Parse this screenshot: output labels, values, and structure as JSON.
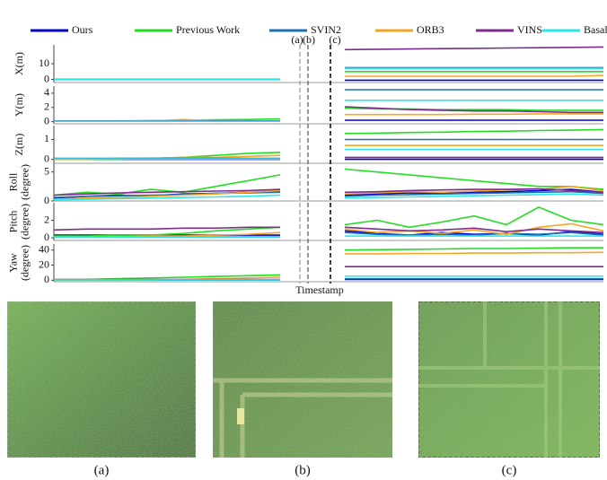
{
  "chart_data": {
    "type": "line",
    "xlabel": "Timestamp",
    "markers": [
      "(a)",
      "(b)",
      "(c)"
    ],
    "series": [
      {
        "name": "Ours",
        "color": "#0000cc"
      },
      {
        "name": "Previous Work",
        "color": "#22dd22"
      },
      {
        "name": "SVIN2",
        "color": "#1f6fb4"
      },
      {
        "name": "ORB3",
        "color": "#f5a623"
      },
      {
        "name": "VINS",
        "color": "#7b2d8e"
      },
      {
        "name": "Basalt",
        "color": "#2ee6e6"
      }
    ],
    "panels": [
      {
        "ylabel": [
          "X(m)"
        ],
        "ylim": [
          -2,
          22
        ],
        "yticks": [
          0,
          10
        ],
        "series": [
          {
            "values": [
              0,
              0,
              0,
              0,
              0,
              0,
              0,
              0,
              null,
              -0.5,
              -0.5,
              -0.5,
              -0.5,
              -0.5,
              -0.5,
              -0.5,
              -0.5,
              -0.5
            ]
          },
          {
            "values": [
              0,
              0,
              0,
              0,
              0,
              0,
              0,
              0,
              null,
              5,
              5,
              5,
              5,
              5,
              5,
              5,
              5,
              5
            ]
          },
          {
            "values": [
              0,
              0,
              0,
              0,
              0,
              0,
              0,
              0,
              null,
              7.5,
              7.5,
              7.5,
              7.5,
              7.5,
              7.5,
              7.5,
              7.5,
              7.5
            ]
          },
          {
            "values": [
              0,
              0,
              0,
              0,
              0,
              0,
              0,
              0,
              null,
              2,
              2,
              2,
              2,
              2,
              2,
              2,
              2,
              2.5
            ]
          },
          {
            "values": [
              0,
              0,
              0,
              0,
              0,
              0,
              0,
              0,
              null,
              19,
              19.2,
              19.4,
              19.6,
              19.8,
              20,
              20.2,
              20.4,
              20.6
            ]
          },
          {
            "values": [
              0,
              0,
              0,
              0,
              0,
              0,
              0,
              0,
              null,
              7,
              7,
              7,
              7,
              7,
              7,
              7,
              7,
              7
            ]
          }
        ]
      },
      {
        "ylabel": [
          "Y(m)"
        ],
        "ylim": [
          -0.3,
          5
        ],
        "yticks": [
          0,
          2,
          4
        ],
        "series": [
          {
            "values": [
              0.05,
              0.05,
              0.05,
              0.05,
              0.05,
              0.05,
              0.05,
              0.05,
              null,
              0.2,
              0.2,
              0.2,
              0.2,
              0.2,
              0.2,
              0.2,
              0.2,
              0.2
            ]
          },
          {
            "values": [
              0.1,
              0.1,
              0.1,
              0.15,
              0.2,
              0.25,
              0.3,
              0.4,
              null,
              1.9,
              1.8,
              1.8,
              1.7,
              1.7,
              1.7,
              1.6,
              1.6,
              1.6
            ]
          },
          {
            "values": [
              0.05,
              0.05,
              0.05,
              0.05,
              0.05,
              0.05,
              0.05,
              0.05,
              null,
              4.5,
              4.5,
              4.5,
              4.5,
              4.5,
              4.5,
              4.5,
              4.5,
              4.5
            ]
          },
          {
            "values": [
              0.05,
              0.05,
              0.05,
              0.05,
              0.3,
              0.1,
              0.1,
              0.1,
              null,
              1,
              1,
              1,
              1,
              1.05,
              1.05,
              1.1,
              1.1,
              1.1
            ]
          },
          {
            "values": [
              0.1,
              0.1,
              0.1,
              0.1,
              0.1,
              0.1,
              0.1,
              0.1,
              null,
              2.1,
              1.9,
              1.7,
              1.6,
              1.5,
              1.5,
              1.4,
              1.3,
              1.3
            ]
          },
          {
            "values": [
              0.05,
              0.05,
              0.05,
              0.05,
              0.05,
              0.05,
              0.05,
              0.05,
              null,
              3,
              3,
              3,
              3,
              3,
              3,
              3,
              3,
              3
            ]
          }
        ]
      },
      {
        "ylabel": [
          "Z(m)"
        ],
        "ylim": [
          -0.2,
          1.7
        ],
        "yticks": [
          0,
          1
        ],
        "series": [
          {
            "values": [
              0,
              0,
              0,
              0,
              0,
              0,
              0,
              0,
              null,
              0,
              0,
              0,
              0,
              0,
              0,
              0,
              0,
              0
            ]
          },
          {
            "values": [
              0,
              0,
              0,
              0.05,
              0.1,
              0.2,
              0.3,
              0.35,
              null,
              1.3,
              1.32,
              1.35,
              1.37,
              1.4,
              1.42,
              1.45,
              1.47,
              1.5
            ]
          },
          {
            "values": [
              0.02,
              0.02,
              0.02,
              0.02,
              0.02,
              0.02,
              0.02,
              0.02,
              null,
              1,
              1,
              1,
              1,
              1,
              1,
              1,
              1,
              1
            ]
          },
          {
            "values": [
              0,
              0,
              0.05,
              0.05,
              0.1,
              0.1,
              0.15,
              0.2,
              null,
              0.7,
              0.7,
              0.7,
              0.7,
              0.7,
              0.7,
              0.7,
              0.7,
              0.7
            ]
          },
          {
            "values": [
              0.05,
              0.05,
              0.05,
              0.05,
              0.05,
              0.05,
              0.05,
              0.05,
              null,
              0.1,
              0.1,
              0.1,
              0.1,
              0.1,
              0.1,
              0.1,
              0.1,
              0.1
            ]
          },
          {
            "values": [
              0.02,
              0.02,
              0.02,
              0.02,
              0.02,
              0.02,
              0.02,
              0.02,
              null,
              0.5,
              0.5,
              0.5,
              0.5,
              0.5,
              0.5,
              0.5,
              0.5,
              0.5
            ]
          }
        ]
      },
      {
        "ylabel": [
          "Roll",
          "(degree)"
        ],
        "ylim": [
          0,
          6.5
        ],
        "yticks": [
          0,
          5
        ],
        "series": [
          {
            "values": [
              0.5,
              0.8,
              1,
              0.9,
              1.2,
              1.3,
              1.5,
              1.6,
              null,
              1,
              1.2,
              1.4,
              1.3,
              1.5,
              1.6,
              1.8,
              2,
              1.5
            ]
          },
          {
            "values": [
              1,
              1.5,
              1.2,
              2,
              1.5,
              2.5,
              3.5,
              4.5,
              null,
              5.5,
              5,
              4.5,
              4,
              3.5,
              3,
              2.5,
              2.5,
              2
            ]
          },
          {
            "values": [
              0.6,
              0.8,
              0.9,
              1,
              1.1,
              1.3,
              1.4,
              1.5,
              null,
              0.8,
              1,
              1.1,
              1.2,
              1.3,
              1.4,
              1.5,
              1.6,
              1.3
            ]
          },
          {
            "values": [
              0.3,
              0.5,
              0.6,
              0.8,
              1,
              1.2,
              1.5,
              1.8,
              null,
              1.2,
              1.4,
              1.6,
              1.5,
              1.7,
              1.9,
              2,
              2.5,
              1.8
            ]
          },
          {
            "values": [
              1,
              1.2,
              1.4,
              1.5,
              1.6,
              1.7,
              1.8,
              2,
              null,
              1.5,
              1.6,
              1.8,
              1.9,
              2,
              2,
              2.1,
              1.8,
              1.5
            ]
          },
          {
            "values": [
              0.2,
              0.3,
              0.4,
              0.5,
              0.6,
              0.7,
              0.8,
              1,
              null,
              0.5,
              0.6,
              0.7,
              0.8,
              0.9,
              1,
              1.1,
              1.2,
              1
            ]
          }
        ]
      },
      {
        "ylabel": [
          "Pitch",
          "(degree)"
        ],
        "ylim": [
          -0.3,
          4
        ],
        "yticks": [
          0,
          2
        ],
        "series": [
          {
            "values": [
              0.3,
              0.3,
              0.3,
              0.3,
              0.3,
              0.3,
              0.3,
              0.3,
              null,
              0.8,
              0.5,
              0.3,
              0.6,
              0.4,
              0.5,
              0.3,
              0.7,
              0.4
            ]
          },
          {
            "values": [
              0.2,
              0.2,
              0.3,
              0.3,
              0.5,
              0.8,
              1,
              1.2,
              null,
              1.5,
              2,
              1.2,
              1.8,
              2.5,
              1.5,
              3.5,
              2,
              1.5
            ]
          },
          {
            "values": [
              0.1,
              0.1,
              0.1,
              0.1,
              0.1,
              0.1,
              0.1,
              0.1,
              null,
              0.6,
              0.4,
              0.3,
              0.4,
              0.3,
              0.5,
              0.4,
              0.6,
              0.3
            ]
          },
          {
            "values": [
              0.1,
              0.1,
              0.1,
              0.2,
              0.2,
              0.3,
              0.4,
              0.6,
              null,
              1,
              0.6,
              0.8,
              0.5,
              0.9,
              0.4,
              1.2,
              1.6,
              0.8
            ]
          },
          {
            "values": [
              0.9,
              1,
              1,
              1,
              1.1,
              1.1,
              1.2,
              1.2,
              null,
              1.2,
              1,
              0.8,
              0.9,
              1.1,
              0.7,
              1,
              0.8,
              0.6
            ]
          },
          {
            "values": [
              0.1,
              0.1,
              0.1,
              0.1,
              0.1,
              0.1,
              0.1,
              0.1,
              null,
              0.2,
              0.2,
              0.2,
              0.2,
              0.2,
              0.2,
              0.2,
              0.2,
              0.2
            ]
          }
        ]
      },
      {
        "ylabel": [
          "Yaw",
          "(degree)"
        ],
        "ylim": [
          -2,
          48
        ],
        "yticks": [
          0,
          20,
          40
        ],
        "series": [
          {
            "values": [
              0.5,
              0.5,
              0.5,
              0.5,
              0.5,
              0.5,
              0.5,
              0.5,
              null,
              1,
              1,
              1,
              1,
              1,
              1,
              1,
              1,
              1
            ]
          },
          {
            "values": [
              1,
              1,
              2,
              3,
              4,
              5,
              6,
              7,
              null,
              40,
              40.5,
              41,
              41.5,
              42,
              42,
              42.5,
              43,
              43
            ]
          },
          {
            "values": [
              0.5,
              0.5,
              0.5,
              0.5,
              0.5,
              0.5,
              0.5,
              0.5,
              null,
              2,
              2,
              2,
              2,
              2,
              2,
              2,
              2,
              2
            ]
          },
          {
            "values": [
              0,
              0,
              0,
              0.5,
              1,
              2,
              3,
              4,
              null,
              35,
              35,
              35.5,
              35.5,
              36,
              36,
              36.5,
              36.5,
              37
            ]
          },
          {
            "values": [
              1,
              1,
              1,
              1,
              1,
              1,
              1,
              1,
              null,
              18,
              18,
              18,
              18,
              18,
              18,
              18,
              18,
              18
            ]
          },
          {
            "values": [
              0.5,
              0.5,
              0.5,
              0.5,
              0.5,
              0.5,
              0.5,
              0.5,
              null,
              5.5,
              5.5,
              5.5,
              5.5,
              5.5,
              5.5,
              5.5,
              5.5,
              5.5
            ]
          }
        ]
      }
    ]
  },
  "images": {
    "captions": [
      "(a)",
      "(b)",
      "(c)"
    ]
  }
}
